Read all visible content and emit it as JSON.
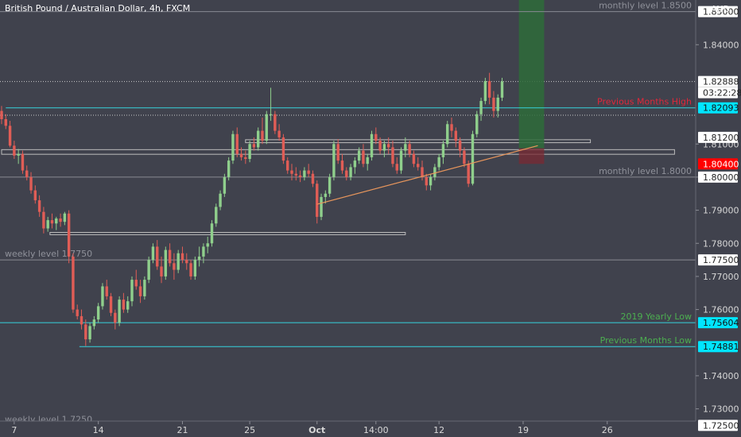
{
  "header": {
    "title": "British Pound / Australian Dollar, 4h, FXCM",
    "currency": "AUD"
  },
  "chart_data": {
    "type": "candlestick",
    "symbol": "GBPAUD",
    "timeframe": "4h",
    "ylim": [
      1.7215,
      1.8535
    ],
    "y_ticks": [
      1.73,
      1.74,
      1.76,
      1.77,
      1.78,
      1.79,
      1.8,
      1.81,
      1.84
    ],
    "x_ticks": [
      {
        "label": "7",
        "index": 3
      },
      {
        "label": "14",
        "index": 23
      },
      {
        "label": "21",
        "index": 43
      },
      {
        "label": "25",
        "index": 59
      },
      {
        "label": "Oct",
        "index": 75
      },
      {
        "label": "14:00",
        "index": 89
      },
      {
        "label": "12",
        "index": 104
      },
      {
        "label": "19",
        "index": 124
      },
      {
        "label": "26",
        "index": 144
      }
    ],
    "price_badges": [
      {
        "label": "1.85000",
        "value": 1.85,
        "style": "white"
      },
      {
        "label": "1.82888",
        "value": 1.82888,
        "style": "white",
        "sub": "03:22:28"
      },
      {
        "label": "1.82093",
        "value": 1.82093,
        "style": "cyan"
      },
      {
        "label": "1.81200",
        "value": 1.812,
        "style": "white"
      },
      {
        "label": "1.80400",
        "value": 1.804,
        "style": "red"
      },
      {
        "label": "1.80000",
        "value": 1.8,
        "style": "white"
      },
      {
        "label": "1.77500",
        "value": 1.775,
        "style": "white"
      },
      {
        "label": "1.75604",
        "value": 1.75604,
        "style": "cyan"
      },
      {
        "label": "1.74881",
        "value": 1.74881,
        "style": "cyan"
      },
      {
        "label": "1.72500",
        "value": 1.725,
        "style": "white"
      }
    ],
    "levels": [
      {
        "value": 1.85,
        "label": "monthly level 1.8500",
        "style": "gray",
        "label_side": "right"
      },
      {
        "value": 1.8,
        "label": "monthly level 1.8000",
        "style": "gray",
        "label_side": "right"
      },
      {
        "value": 1.775,
        "label": "weekly level 1.7750",
        "style": "gray",
        "label_side": "left"
      },
      {
        "value": 1.725,
        "label": "weekly level 1.7250",
        "style": "gray",
        "label_side": "left"
      },
      {
        "value": 1.82093,
        "label": "Previous Months High",
        "style": "cyan",
        "label_side": "right",
        "label_color": "#e0273a",
        "start_index": 1
      },
      {
        "value": 1.75604,
        "label": "2019 Yearly Low",
        "style": "cyan",
        "label_side": "right",
        "label_color": "#4caf50"
      },
      {
        "value": 1.74881,
        "label": "Previous Months Low",
        "style": "cyan",
        "label_side": "right",
        "label_color": "#4caf50",
        "start_index": 18.5
      }
    ],
    "dotted_lines": [
      1.82888,
      1.8187
    ],
    "zones": [
      {
        "x_start": 0,
        "x_end": 160,
        "y_low": 1.8069,
        "y_high": 1.8083
      },
      {
        "x_start": 58,
        "x_end": 140,
        "y_low": 1.8104,
        "y_high": 1.8113
      },
      {
        "x_start": 11.5,
        "x_end": 96,
        "y_low": 1.7826,
        "y_high": 1.7833
      }
    ],
    "trendline": {
      "x1": 75,
      "y1": 1.7918,
      "x2": 127.5,
      "y2": 1.8095
    },
    "position": {
      "x_start": 123,
      "x_end": 129,
      "entry": 1.8087,
      "target": 1.8535,
      "stop": 1.804
    },
    "candles_ohlc": [
      [
        1.82,
        1.8215,
        1.816,
        1.8175
      ],
      [
        1.8175,
        1.819,
        1.8145,
        1.8155
      ],
      [
        1.8155,
        1.817,
        1.809,
        1.8095
      ],
      [
        1.8095,
        1.811,
        1.8055,
        1.8065
      ],
      [
        1.8065,
        1.8085,
        1.804,
        1.807
      ],
      [
        1.807,
        1.808,
        1.801,
        1.802
      ],
      [
        1.802,
        1.8035,
        1.799,
        1.8
      ],
      [
        1.8,
        1.8015,
        1.795,
        1.796
      ],
      [
        1.796,
        1.7975,
        1.792,
        1.793
      ],
      [
        1.793,
        1.7945,
        1.788,
        1.7895
      ],
      [
        1.7895,
        1.791,
        1.783,
        1.7845
      ],
      [
        1.7845,
        1.788,
        1.7835,
        1.787
      ],
      [
        1.787,
        1.789,
        1.7845,
        1.786
      ],
      [
        1.786,
        1.788,
        1.784,
        1.7875
      ],
      [
        1.7875,
        1.789,
        1.785,
        1.7865
      ],
      [
        1.7865,
        1.7895,
        1.7855,
        1.789
      ],
      [
        1.789,
        1.79,
        1.774,
        1.776
      ],
      [
        1.776,
        1.777,
        1.759,
        1.76
      ],
      [
        1.76,
        1.7615,
        1.757,
        1.758
      ],
      [
        1.758,
        1.76,
        1.754,
        1.7555
      ],
      [
        1.7555,
        1.757,
        1.749,
        1.751
      ],
      [
        1.751,
        1.756,
        1.75,
        1.755
      ],
      [
        1.755,
        1.758,
        1.754,
        1.757
      ],
      [
        1.757,
        1.762,
        1.756,
        1.761
      ],
      [
        1.761,
        1.768,
        1.76,
        1.767
      ],
      [
        1.767,
        1.769,
        1.763,
        1.764
      ],
      [
        1.764,
        1.765,
        1.758,
        1.759
      ],
      [
        1.759,
        1.76,
        1.754,
        1.756
      ],
      [
        1.756,
        1.764,
        1.755,
        1.763
      ],
      [
        1.763,
        1.765,
        1.759,
        1.76
      ],
      [
        1.76,
        1.764,
        1.759,
        1.7625
      ],
      [
        1.7625,
        1.77,
        1.761,
        1.769
      ],
      [
        1.769,
        1.772,
        1.766,
        1.767
      ],
      [
        1.767,
        1.769,
        1.762,
        1.764
      ],
      [
        1.764,
        1.77,
        1.763,
        1.769
      ],
      [
        1.769,
        1.776,
        1.768,
        1.775
      ],
      [
        1.775,
        1.78,
        1.774,
        1.779
      ],
      [
        1.779,
        1.781,
        1.772,
        1.773
      ],
      [
        1.773,
        1.776,
        1.768,
        1.77
      ],
      [
        1.77,
        1.779,
        1.769,
        1.778
      ],
      [
        1.778,
        1.78,
        1.773,
        1.774
      ],
      [
        1.774,
        1.777,
        1.769,
        1.772
      ],
      [
        1.772,
        1.778,
        1.771,
        1.777
      ],
      [
        1.777,
        1.779,
        1.774,
        1.775
      ],
      [
        1.775,
        1.777,
        1.772,
        1.774
      ],
      [
        1.774,
        1.775,
        1.769,
        1.77
      ],
      [
        1.77,
        1.776,
        1.769,
        1.775
      ],
      [
        1.775,
        1.779,
        1.773,
        1.776
      ],
      [
        1.776,
        1.78,
        1.774,
        1.779
      ],
      [
        1.779,
        1.782,
        1.777,
        1.78
      ],
      [
        1.78,
        1.787,
        1.779,
        1.786
      ],
      [
        1.786,
        1.792,
        1.785,
        1.791
      ],
      [
        1.791,
        1.796,
        1.79,
        1.795
      ],
      [
        1.795,
        1.801,
        1.794,
        1.8
      ],
      [
        1.8,
        1.806,
        1.799,
        1.805
      ],
      [
        1.805,
        1.814,
        1.804,
        1.813
      ],
      [
        1.813,
        1.815,
        1.806,
        1.807
      ],
      [
        1.807,
        1.809,
        1.805,
        1.806
      ],
      [
        1.806,
        1.808,
        1.804,
        1.8055
      ],
      [
        1.8055,
        1.811,
        1.8045,
        1.81
      ],
      [
        1.81,
        1.812,
        1.808,
        1.809
      ],
      [
        1.809,
        1.815,
        1.808,
        1.814
      ],
      [
        1.814,
        1.818,
        1.81,
        1.811
      ],
      [
        1.811,
        1.82,
        1.81,
        1.819
      ],
      [
        1.819,
        1.827,
        1.817,
        1.819
      ],
      [
        1.819,
        1.82,
        1.813,
        1.814
      ],
      [
        1.814,
        1.816,
        1.811,
        1.812
      ],
      [
        1.812,
        1.813,
        1.804,
        1.805
      ],
      [
        1.805,
        1.806,
        1.801,
        1.802
      ],
      [
        1.802,
        1.804,
        1.799,
        1.801
      ],
      [
        1.801,
        1.803,
        1.799,
        1.8005
      ],
      [
        1.8005,
        1.802,
        1.7985,
        1.8
      ],
      [
        1.8,
        1.803,
        1.799,
        1.802
      ],
      [
        1.802,
        1.804,
        1.8,
        1.801
      ],
      [
        1.801,
        1.802,
        1.797,
        1.798
      ],
      [
        1.798,
        1.799,
        1.786,
        1.788
      ],
      [
        1.788,
        1.795,
        1.787,
        1.794
      ],
      [
        1.794,
        1.796,
        1.792,
        1.795
      ],
      [
        1.795,
        1.801,
        1.794,
        1.8
      ],
      [
        1.8,
        1.811,
        1.799,
        1.81
      ],
      [
        1.81,
        1.8115,
        1.804,
        1.805
      ],
      [
        1.805,
        1.807,
        1.801,
        1.802
      ],
      [
        1.802,
        1.803,
        1.799,
        1.8
      ],
      [
        1.8,
        1.804,
        1.799,
        1.803
      ],
      [
        1.803,
        1.806,
        1.801,
        1.805
      ],
      [
        1.805,
        1.809,
        1.804,
        1.808
      ],
      [
        1.808,
        1.81,
        1.803,
        1.804
      ],
      [
        1.804,
        1.807,
        1.802,
        1.806
      ],
      [
        1.806,
        1.814,
        1.805,
        1.813
      ],
      [
        1.813,
        1.815,
        1.81,
        1.811
      ],
      [
        1.811,
        1.812,
        1.807,
        1.808
      ],
      [
        1.808,
        1.811,
        1.806,
        1.81
      ],
      [
        1.81,
        1.812,
        1.807,
        1.809
      ],
      [
        1.809,
        1.811,
        1.803,
        1.804
      ],
      [
        1.804,
        1.806,
        1.801,
        1.802
      ],
      [
        1.802,
        1.809,
        1.801,
        1.808
      ],
      [
        1.808,
        1.812,
        1.806,
        1.81
      ],
      [
        1.81,
        1.811,
        1.806,
        1.807
      ],
      [
        1.807,
        1.808,
        1.803,
        1.804
      ],
      [
        1.804,
        1.806,
        1.802,
        1.803
      ],
      [
        1.803,
        1.805,
        1.799,
        1.8
      ],
      [
        1.8,
        1.801,
        1.796,
        1.7975
      ],
      [
        1.7975,
        1.801,
        1.796,
        1.8
      ],
      [
        1.8,
        1.804,
        1.799,
        1.803
      ],
      [
        1.803,
        1.807,
        1.802,
        1.806
      ],
      [
        1.806,
        1.811,
        1.804,
        1.81
      ],
      [
        1.81,
        1.817,
        1.809,
        1.816
      ],
      [
        1.816,
        1.818,
        1.812,
        1.814
      ],
      [
        1.814,
        1.815,
        1.809,
        1.811
      ],
      [
        1.811,
        1.812,
        1.806,
        1.808
      ],
      [
        1.808,
        1.809,
        1.803,
        1.804
      ],
      [
        1.804,
        1.805,
        1.797,
        1.798
      ],
      [
        1.798,
        1.814,
        1.7975,
        1.813
      ],
      [
        1.813,
        1.82,
        1.812,
        1.819
      ],
      [
        1.819,
        1.824,
        1.817,
        1.823
      ],
      [
        1.823,
        1.83,
        1.822,
        1.829
      ],
      [
        1.829,
        1.8315,
        1.822,
        1.824
      ],
      [
        1.824,
        1.826,
        1.818,
        1.82
      ],
      [
        1.82,
        1.825,
        1.818,
        1.824
      ],
      [
        1.824,
        1.83,
        1.823,
        1.8289
      ]
    ]
  }
}
